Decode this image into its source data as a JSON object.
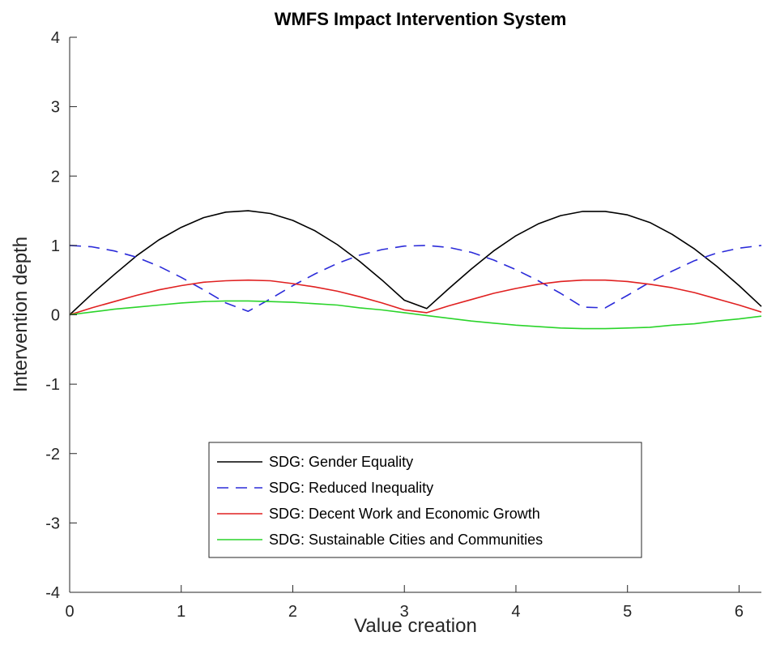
{
  "chart_data": {
    "type": "line",
    "title": "WMFS Impact Intervention System",
    "xlabel": "Value creation",
    "ylabel": "Intervention depth",
    "xlim": [
      0,
      6.2
    ],
    "ylim": [
      -4,
      4
    ],
    "xticks": [
      0,
      1,
      2,
      3,
      4,
      5,
      6
    ],
    "yticks": [
      -4,
      -3,
      -2,
      -1,
      0,
      1,
      2,
      3,
      4
    ],
    "grid": false,
    "legend_position": "lower-center",
    "x": [
      0,
      0.2,
      0.4,
      0.6,
      0.8,
      1.0,
      1.2,
      1.4,
      1.6,
      1.8,
      2.0,
      2.2,
      2.4,
      2.6,
      2.8,
      3.0,
      3.2,
      3.4,
      3.6,
      3.8,
      4.0,
      4.2,
      4.4,
      4.6,
      4.8,
      5.0,
      5.2,
      5.4,
      5.6,
      5.8,
      6.0,
      6.2
    ],
    "series": [
      {
        "name": "SDG: Gender Equality",
        "color": "#000000",
        "dash": "solid",
        "values": [
          0,
          0.3,
          0.58,
          0.85,
          1.08,
          1.26,
          1.4,
          1.48,
          1.5,
          1.46,
          1.36,
          1.21,
          1.01,
          0.77,
          0.5,
          0.21,
          0.09,
          0.38,
          0.66,
          0.92,
          1.14,
          1.31,
          1.43,
          1.49,
          1.49,
          1.44,
          1.33,
          1.16,
          0.95,
          0.7,
          0.42,
          0.12
        ]
      },
      {
        "name": "SDG: Reduced Inequality",
        "color": "#2b2bd9",
        "dash": "dashed",
        "values": [
          1.0,
          0.98,
          0.92,
          0.83,
          0.7,
          0.54,
          0.36,
          0.17,
          0.05,
          0.23,
          0.42,
          0.59,
          0.74,
          0.86,
          0.94,
          0.99,
          1.0,
          0.97,
          0.9,
          0.79,
          0.65,
          0.49,
          0.31,
          0.11,
          0.1,
          0.28,
          0.47,
          0.63,
          0.78,
          0.89,
          0.96,
          1.0
        ]
      },
      {
        "name": "SDG: Decent Work and Economic Growth",
        "color": "#e02020",
        "dash": "solid",
        "values": [
          0,
          0.1,
          0.19,
          0.28,
          0.36,
          0.42,
          0.47,
          0.49,
          0.5,
          0.49,
          0.45,
          0.4,
          0.34,
          0.26,
          0.17,
          0.07,
          0.03,
          0.13,
          0.22,
          0.31,
          0.38,
          0.44,
          0.48,
          0.5,
          0.5,
          0.48,
          0.44,
          0.39,
          0.32,
          0.23,
          0.14,
          0.04
        ]
      },
      {
        "name": "SDG: Sustainable Cities and Communities",
        "color": "#2ad42a",
        "dash": "solid",
        "values": [
          0,
          0.04,
          0.08,
          0.11,
          0.14,
          0.17,
          0.19,
          0.2,
          0.2,
          0.19,
          0.18,
          0.16,
          0.14,
          0.1,
          0.07,
          0.03,
          -0.01,
          -0.05,
          -0.09,
          -0.12,
          -0.15,
          -0.17,
          -0.19,
          -0.2,
          -0.2,
          -0.19,
          -0.18,
          -0.15,
          -0.13,
          -0.09,
          -0.06,
          -0.02
        ]
      }
    ]
  }
}
